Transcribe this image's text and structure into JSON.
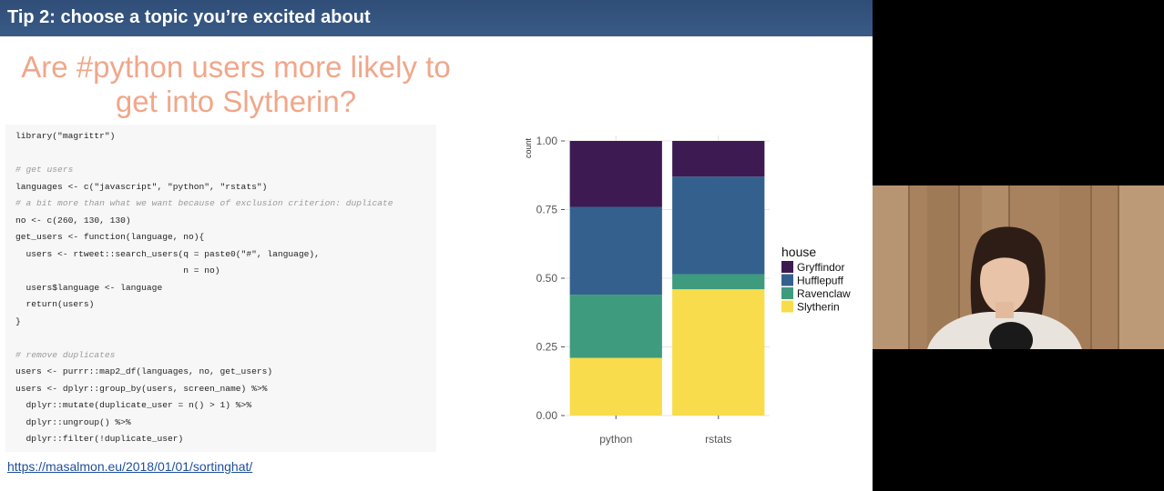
{
  "slide": {
    "header_title": "Tip 2: choose a topic you’re excited about",
    "title_line1": "Are #python users more likely to",
    "title_line2": "get into Slytherin?",
    "link": "https://masalmon.eu/2018/01/01/sortinghat/"
  },
  "code": [
    {
      "text": "library(\"magrittr\")",
      "comment": false
    },
    {
      "text": "",
      "comment": false
    },
    {
      "text": "# get users",
      "comment": true
    },
    {
      "text": "languages <- c(\"javascript\", \"python\", \"rstats\")",
      "comment": false
    },
    {
      "text": "# a bit more than what we want because of exclusion criterion: duplicate",
      "comment": true
    },
    {
      "text": "no <- c(260, 130, 130)",
      "comment": false
    },
    {
      "text": "get_users <- function(language, no){",
      "comment": false
    },
    {
      "text": "  users <- rtweet::search_users(q = paste0(\"#\", language),",
      "comment": false
    },
    {
      "text": "                                n = no)",
      "comment": false
    },
    {
      "text": "  users$language <- language",
      "comment": false
    },
    {
      "text": "  return(users)",
      "comment": false
    },
    {
      "text": "}",
      "comment": false
    },
    {
      "text": "",
      "comment": false
    },
    {
      "text": "# remove duplicates",
      "comment": true
    },
    {
      "text": "users <- purrr::map2_df(languages, no, get_users)",
      "comment": false
    },
    {
      "text": "users <- dplyr::group_by(users, screen_name) %>%",
      "comment": false
    },
    {
      "text": "  dplyr::mutate(duplicate_user = n() > 1) %>%",
      "comment": false
    },
    {
      "text": "  dplyr::ungroup() %>%",
      "comment": false
    },
    {
      "text": "  dplyr::filter(!duplicate_user)",
      "comment": false
    }
  ],
  "chart_data": {
    "type": "bar",
    "stacked": true,
    "categories": [
      "python",
      "rstats"
    ],
    "ylabel": "count",
    "ylim": [
      0,
      1
    ],
    "yticks": [
      "0.00",
      "0.25",
      "0.50",
      "0.75",
      "1.00"
    ],
    "legend_title": "house",
    "legend_position": "right",
    "grid": true,
    "series": [
      {
        "name": "Slytherin",
        "values": [
          0.21,
          0.46
        ],
        "color": "#f8dc4b"
      },
      {
        "name": "Ravenclaw",
        "values": [
          0.23,
          0.055
        ],
        "color": "#3e9b7d"
      },
      {
        "name": "Hufflepuff",
        "values": [
          0.32,
          0.355
        ],
        "color": "#34608e"
      },
      {
        "name": "Gryffindor",
        "values": [
          0.24,
          0.13
        ],
        "color": "#3d1a52"
      }
    ],
    "legend_order": [
      "Gryffindor",
      "Hufflepuff",
      "Ravenclaw",
      "Slytherin"
    ]
  },
  "colors": {
    "header_bg": "#34537f",
    "title": "#f0a78a",
    "link": "#1f4e9c"
  }
}
